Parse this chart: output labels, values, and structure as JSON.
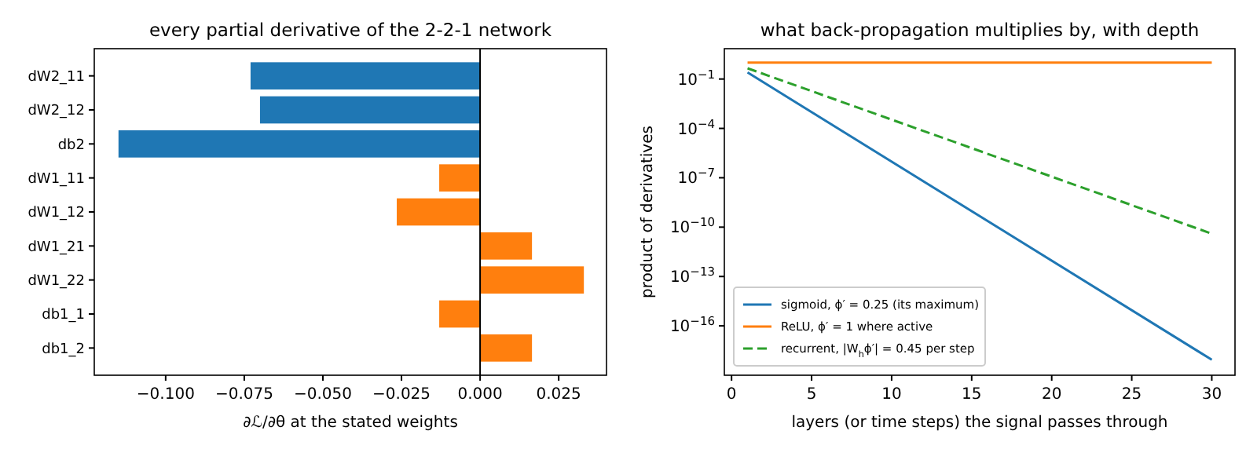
{
  "chart_data": [
    {
      "type": "bar",
      "orientation": "horizontal",
      "title": "every partial derivative of the 2-2-1 network",
      "xlabel": "∂ℒ/∂θ at the stated weights",
      "categories": [
        "dW2_11",
        "dW2_12",
        "db2",
        "dW1_11",
        "dW1_12",
        "dW1_21",
        "dW1_22",
        "db1_1",
        "db1_2"
      ],
      "values": [
        -0.073,
        -0.07,
        -0.115,
        -0.013,
        -0.0265,
        0.0165,
        0.033,
        -0.013,
        0.0165
      ],
      "colors": [
        "#1f77b4",
        "#1f77b4",
        "#1f77b4",
        "#ff7f0e",
        "#ff7f0e",
        "#ff7f0e",
        "#ff7f0e",
        "#ff7f0e",
        "#ff7f0e"
      ],
      "xlim": [
        -0.1227,
        0.0402
      ],
      "xticks": [
        {
          "value": -0.1,
          "label": "−0.100"
        },
        {
          "value": -0.075,
          "label": "−0.075"
        },
        {
          "value": -0.05,
          "label": "−0.050"
        },
        {
          "value": -0.025,
          "label": "−0.025"
        },
        {
          "value": 0,
          "label": "0.000"
        },
        {
          "value": 0.025,
          "label": "0.025"
        }
      ],
      "ref_lines": [
        {
          "axis": "x",
          "value": 0,
          "color": "#000000"
        }
      ],
      "legend": false
    },
    {
      "type": "line",
      "title": "what back-propagation multiplies by, with depth",
      "xlabel": "layers (or time steps) the signal passes through",
      "ylabel": "product of derivatives",
      "log": "y",
      "xlim": [
        -0.45,
        31.45
      ],
      "ylim": [
        1e-19,
        7
      ],
      "xticks": [
        0,
        5,
        10,
        15,
        20,
        25,
        30
      ],
      "yticks": [
        {
          "value": 0.1,
          "label": "10$^{−1}$"
        },
        {
          "value": 0.0001,
          "label": "10$^{−4}$"
        },
        {
          "value": 1e-07,
          "label": "10$^{−7}$"
        },
        {
          "value": 1e-10,
          "label": "10$^{−10}$"
        },
        {
          "value": 1e-13,
          "label": "10$^{−13}$"
        },
        {
          "value": 1e-16,
          "label": "10$^{−16}$"
        }
      ],
      "x": [
        1,
        30
      ],
      "legend": "bottom left",
      "marker": "none",
      "series": [
        {
          "name": "sigmoid, ϕ′ = 0.25 (its maximum)",
          "color": "#1f77b4",
          "values": [
            0.25,
            8.7e-19
          ],
          "line_style": "solid"
        },
        {
          "name": "ReLU, ϕ′ = 1 where active",
          "color": "#ff7f0e",
          "values": [
            1,
            1
          ],
          "line_style": "solid"
        },
        {
          "name": "recurrent, |W$_{h}$ϕ′| = 0.45 per step",
          "color": "#2ca02c",
          "values": [
            0.45,
            4e-11
          ],
          "line_style": "dashed"
        }
      ]
    }
  ]
}
